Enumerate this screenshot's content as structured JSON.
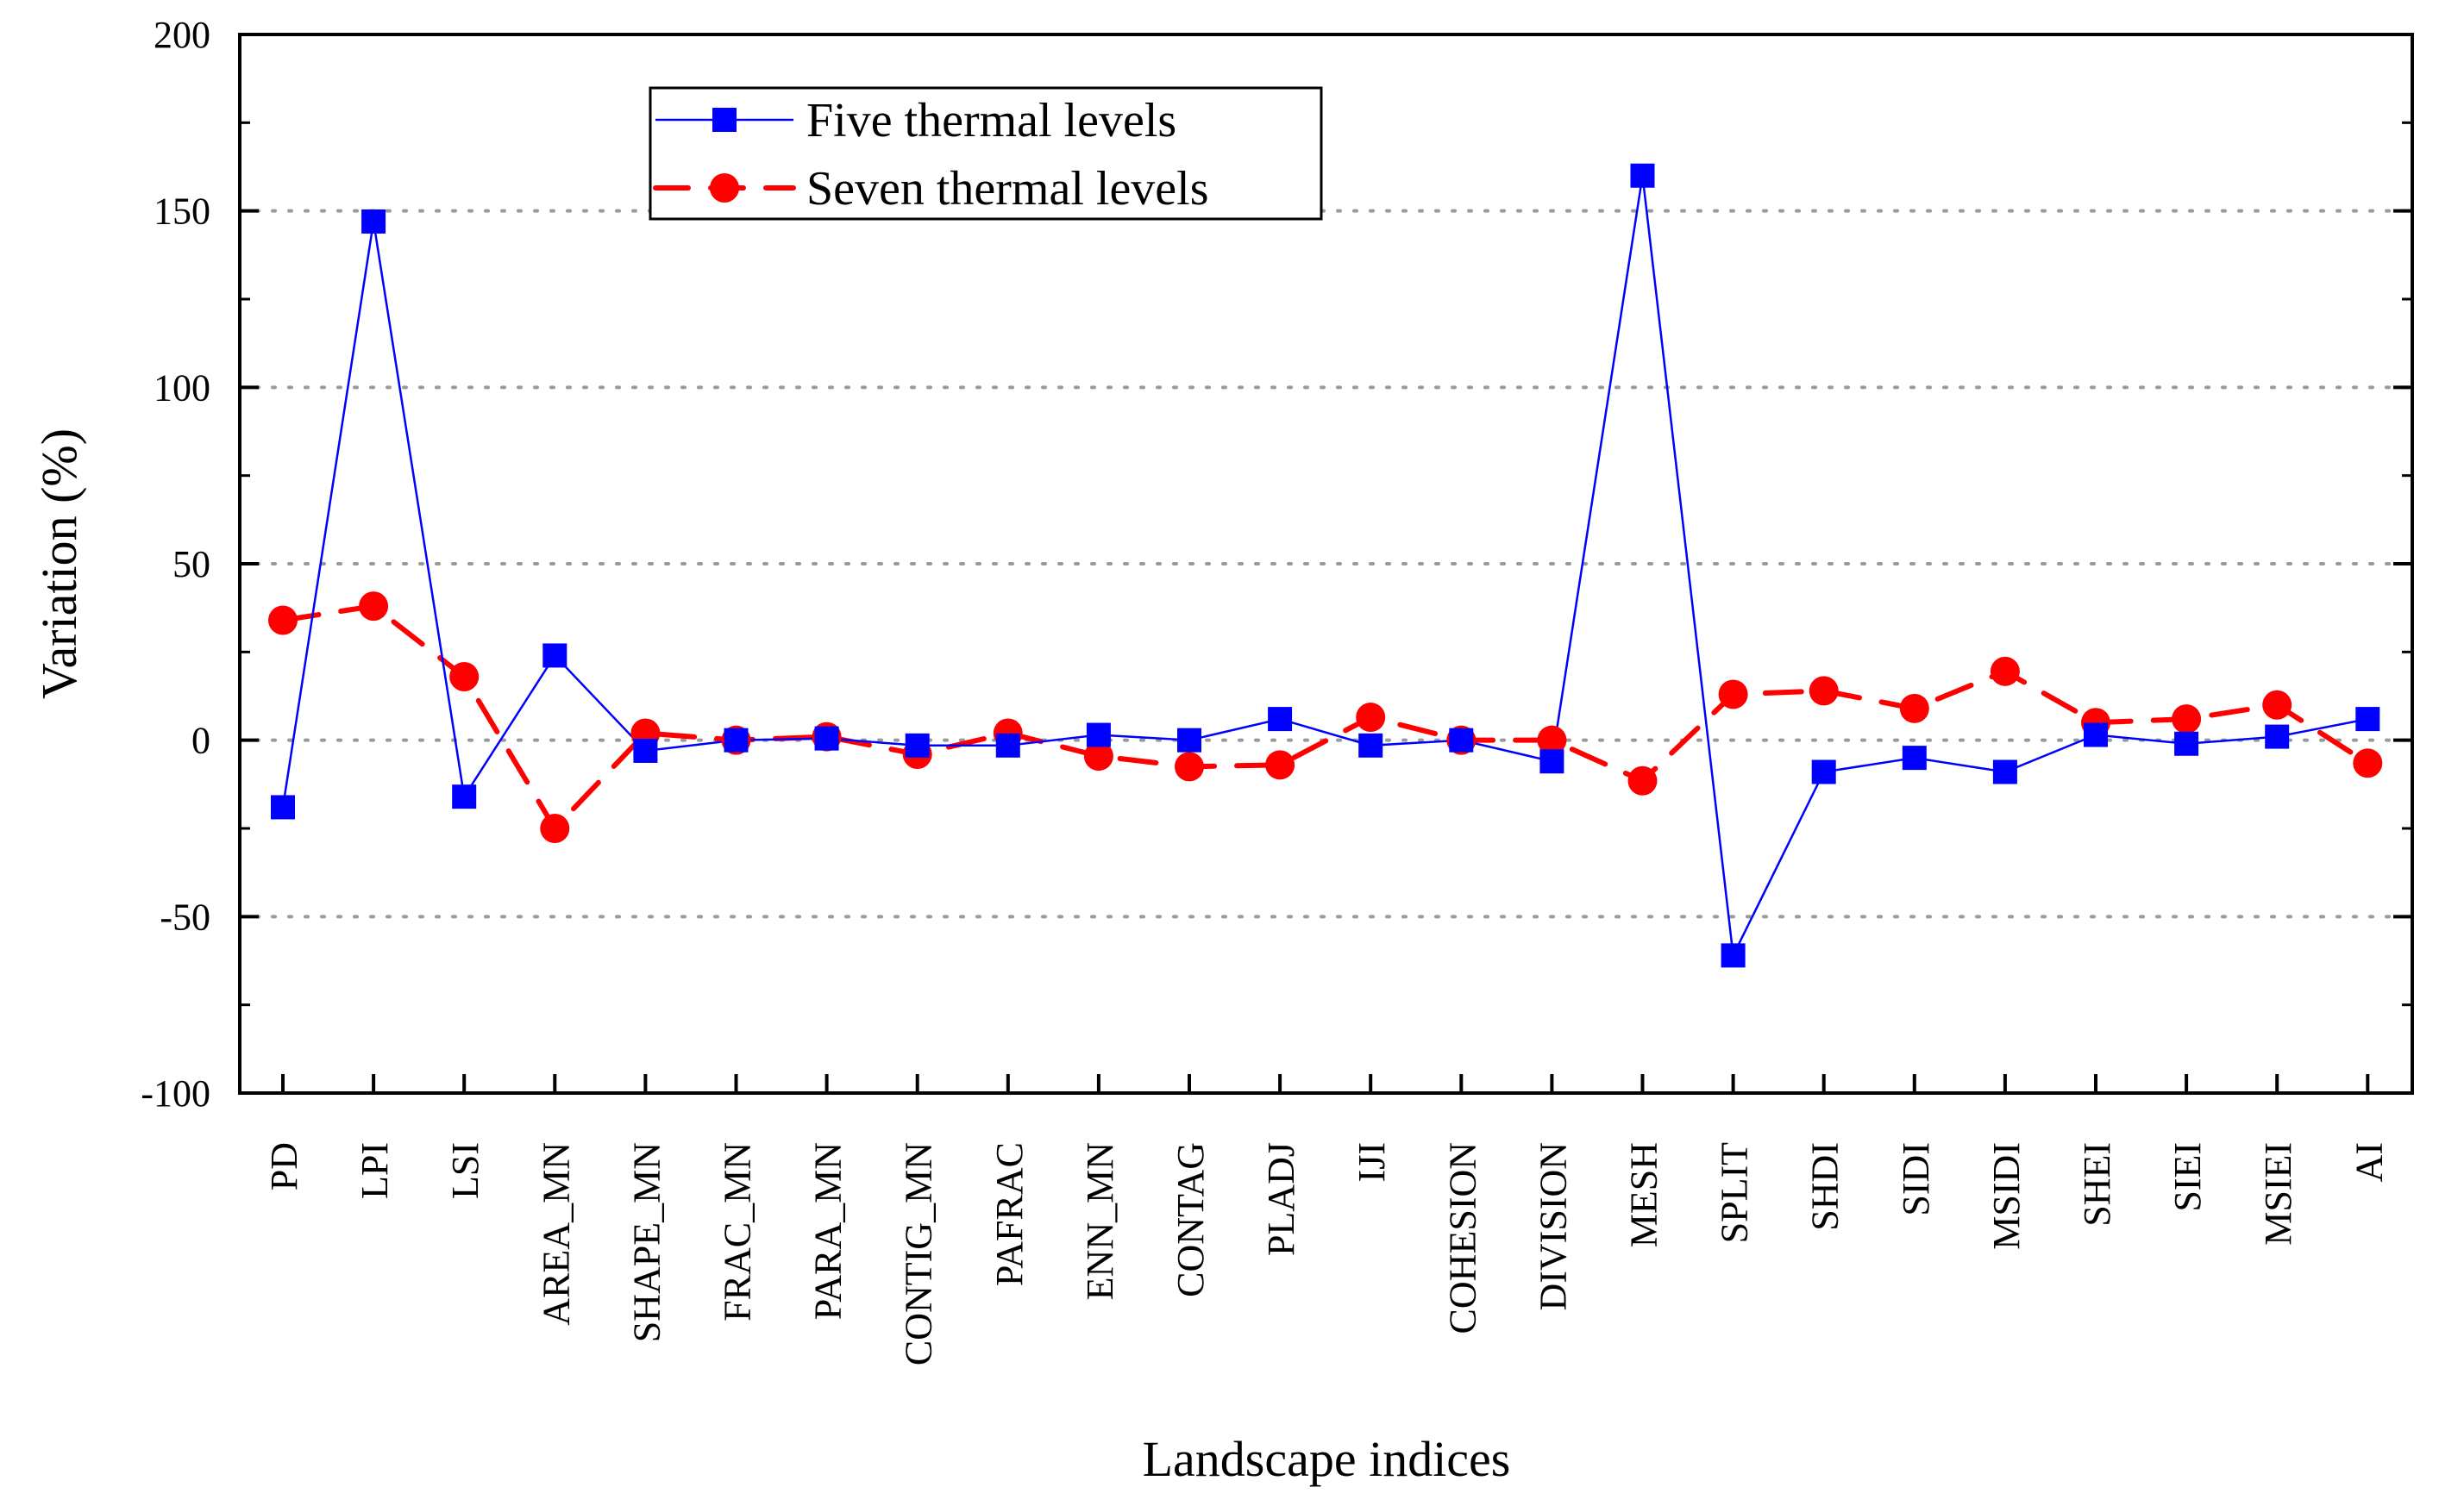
{
  "chart_data": {
    "type": "line",
    "title": "",
    "xlabel": "Landscape indices",
    "ylabel": "Variation (%)",
    "ylim": [
      -100,
      200
    ],
    "yticks": [
      -100,
      -50,
      0,
      50,
      100,
      150,
      200
    ],
    "ytick_labels": [
      "-100",
      "-50",
      "0",
      "50",
      "100",
      "150",
      "200"
    ],
    "grid": "horizontal dotted",
    "legend_position": "top-left",
    "categories": [
      "PD",
      "LPI",
      "LSI",
      "AREA_MN",
      "SHAPE_MN",
      "FRAC_MN",
      "PARA_MN",
      "CONTIG_MN",
      "PAFRAC",
      "ENN_MN",
      "CONTAG",
      "PLADJ",
      "IJI",
      "COHESION",
      "DIVISION",
      "MESH",
      "SPLIT",
      "SHDI",
      "SIDI",
      "MSIDI",
      "SHEI",
      "SIEI",
      "MSIEI",
      "AI"
    ],
    "series": [
      {
        "name": "Five thermal levels",
        "color": "#0000ff",
        "marker": "square",
        "line": "solid",
        "values": [
          -19,
          147,
          -16,
          24,
          -3,
          0,
          0.5,
          -1.5,
          -1.5,
          1.5,
          0,
          6,
          -1.5,
          0,
          -6,
          160,
          -61,
          -9,
          -5,
          -9,
          1.5,
          -1,
          1,
          6
        ]
      },
      {
        "name": "Seven thermal levels",
        "color": "#ff0000",
        "marker": "circle",
        "line": "dashed",
        "values": [
          34,
          38,
          18,
          -25,
          2,
          0,
          1,
          -4,
          2,
          -4.5,
          -7.5,
          -7,
          6.5,
          0,
          0,
          -11.5,
          13,
          14,
          9,
          19.5,
          5,
          6,
          10,
          -6.5
        ]
      }
    ]
  }
}
